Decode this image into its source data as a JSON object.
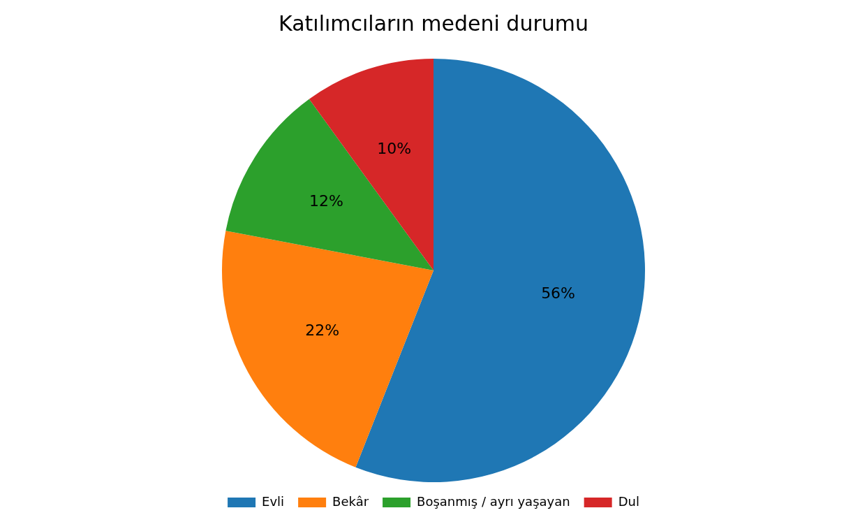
{
  "chart_data": {
    "type": "pie",
    "title": "Katılımcıların medeni durumu",
    "categories": [
      "Evli",
      "Bekâr",
      "Boşanmış / ayrı yaşayan",
      "Dul"
    ],
    "values": [
      56,
      22,
      12,
      10
    ],
    "colors": [
      "#1f77b4",
      "#ff7f0e",
      "#2ca02c",
      "#d62728"
    ],
    "value_labels": [
      "56%",
      "22%",
      "12%",
      "10%"
    ],
    "legend": "bottom"
  }
}
